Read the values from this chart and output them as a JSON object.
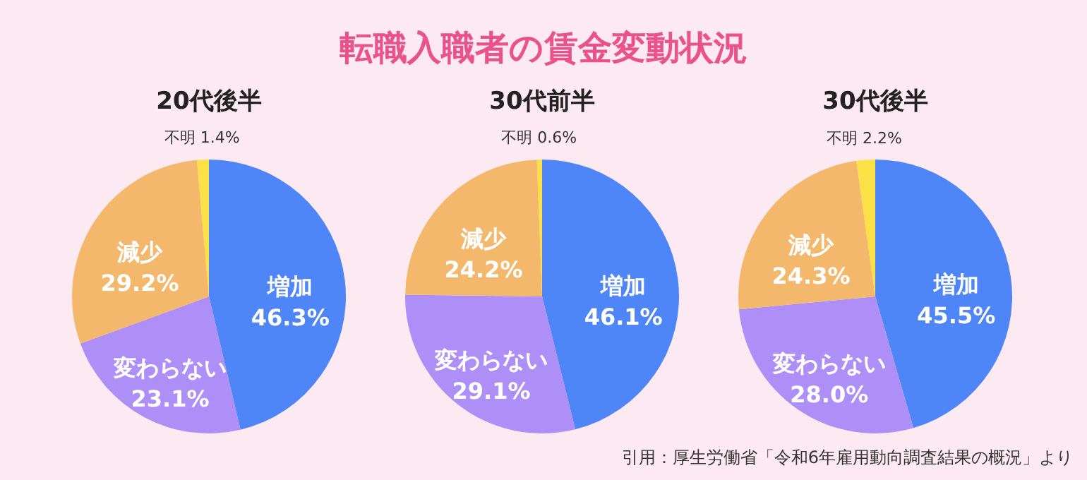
{
  "chart_data": [
    {
      "type": "other",
      "title": "転職入職者の賃金変動状況",
      "annotations": [
        "引用：厚生労働省「令和6年雇用動向調査結果の概況」より"
      ]
    },
    {
      "type": "pie",
      "title": "20代後半",
      "categories": [
        "増加",
        "変わらない",
        "減少",
        "不明"
      ],
      "values": [
        46.3,
        23.1,
        29.2,
        1.4
      ],
      "value_labels": [
        "46.3%",
        "23.1%",
        "29.2%",
        "1.4%"
      ],
      "colors": [
        "#4f86f7",
        "#ae8ff7",
        "#f4b86c",
        "#fbe046"
      ],
      "legend": false
    },
    {
      "type": "pie",
      "title": "30代前半",
      "categories": [
        "増加",
        "変わらない",
        "減少",
        "不明"
      ],
      "values": [
        46.1,
        29.1,
        24.2,
        0.6
      ],
      "value_labels": [
        "46.1%",
        "29.1%",
        "24.2%",
        "0.6%"
      ],
      "colors": [
        "#4f86f7",
        "#ae8ff7",
        "#f4b86c",
        "#fbe046"
      ],
      "legend": false
    },
    {
      "type": "pie",
      "title": "30代後半",
      "categories": [
        "増加",
        "変わらない",
        "減少",
        "不明"
      ],
      "values": [
        45.5,
        28.0,
        24.3,
        2.2
      ],
      "value_labels": [
        "45.5%",
        "28.0%",
        "24.3%",
        "2.2%"
      ],
      "colors": [
        "#4f86f7",
        "#ae8ff7",
        "#f4b86c",
        "#fbe046"
      ],
      "legend": false
    }
  ]
}
